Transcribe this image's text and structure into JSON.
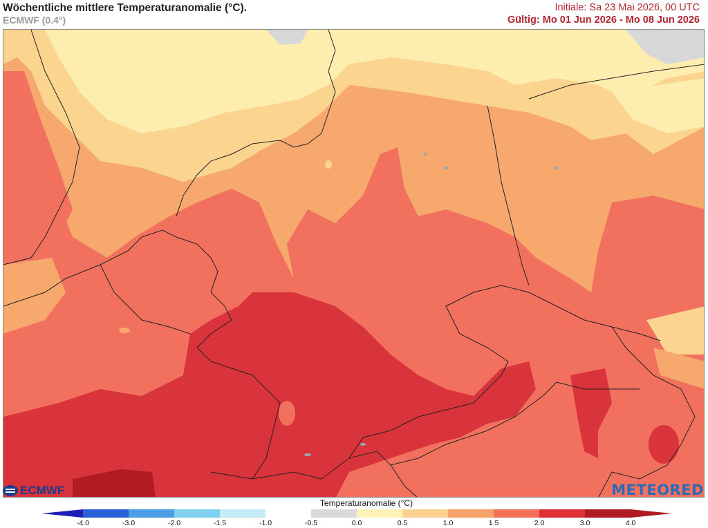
{
  "header": {
    "title": "Wöchentliche mittlere Temperaturanomalie (°C).",
    "model": "ECMWF (0.4°)",
    "init": "Initiale: Sa 23 Mai 2026, 00 UTC",
    "valid": "Gültig: Mo 01 Jun 2026 - Mo 08 Jun 2026"
  },
  "legend": {
    "title": "Temperaturanomalie (°C)",
    "ticks": [
      "-4.0",
      "-3.0",
      "-2.0",
      "-1.5",
      "-1.0",
      "-0.5",
      "0.0",
      "0.5",
      "1.0",
      "1.5",
      "2.0",
      "3.0",
      "4.0"
    ],
    "colors": [
      "#1f1fb5",
      "#2b5fd6",
      "#4b9ee6",
      "#7fd0ef",
      "#c4ecf6",
      "#ffffff",
      "#d9d9d9",
      "#fff2b8",
      "#fcd08f",
      "#f7a36a",
      "#f2705a",
      "#df3038",
      "#b01c22"
    ]
  },
  "logos": {
    "ecmwf": "ECMWF",
    "meteored": "METEORED"
  },
  "map_colors": {
    "anom_0_5_1": "#fdeeb0",
    "anom_1_1_5": "#fbd590",
    "anom_1_5_2": "#f6a86d",
    "anom_2_3": "#f2705e",
    "anom_3_4": "#d9343b",
    "anom_4": "#b01c22",
    "no_anom": "#d8d8d8"
  }
}
